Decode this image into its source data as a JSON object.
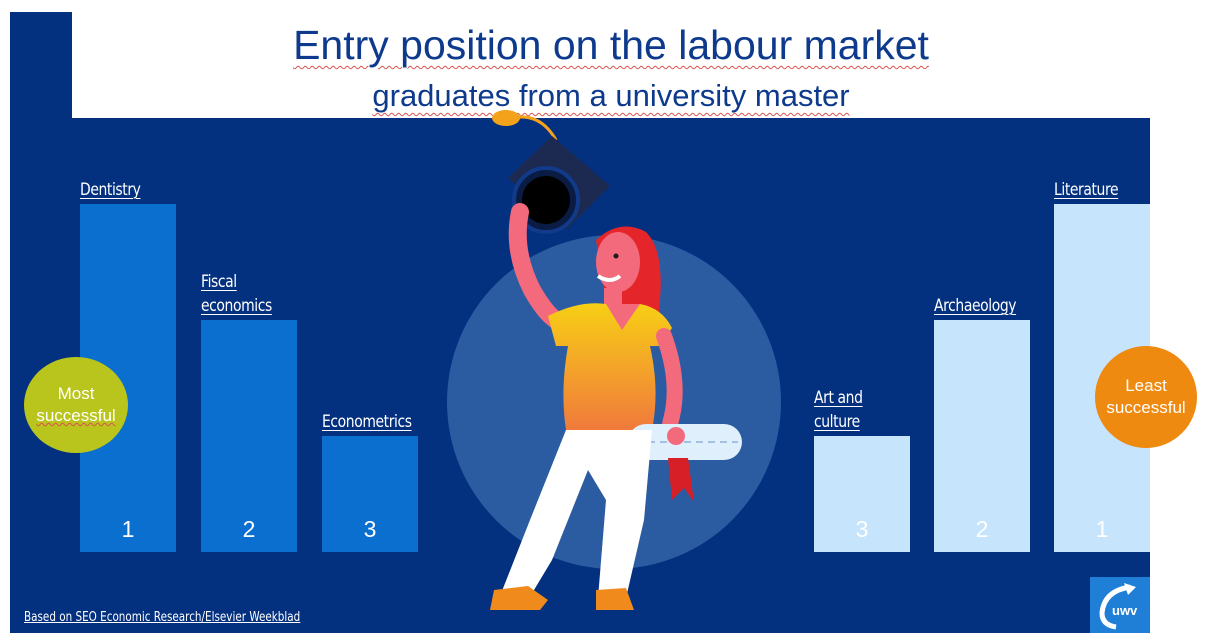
{
  "title": "Entry position on the labour market",
  "subtitle": "graduates from a university master",
  "source": "Based on SEO Economic Research/Elsevier Weekblad",
  "logo_text": "uwv",
  "colors": {
    "background": "#03307f",
    "most_bars": "#0a6fce",
    "least_bars": "#c6e4fb",
    "most_badge": "#b9c51c",
    "least_badge": "#ef8a10"
  },
  "chart_data": [
    {
      "type": "bar",
      "group": "Most successful",
      "categories": [
        "Dentistry",
        "Fiscal economics",
        "Econometrics"
      ],
      "ranks": [
        1,
        2,
        3
      ],
      "category_lines": [
        [
          "Dentistry"
        ],
        [
          "Fiscal",
          "economics"
        ],
        [
          "Econometrics"
        ]
      ],
      "values": [
        3,
        2,
        1
      ],
      "badge_lines": [
        "Most",
        "successful"
      ]
    },
    {
      "type": "bar",
      "group": "Least successful",
      "categories": [
        "Art and culture",
        "Archaeology",
        "Literature"
      ],
      "ranks": [
        3,
        2,
        1
      ],
      "category_lines": [
        [
          "Art and",
          "culture"
        ],
        [
          "Archaeology"
        ],
        [
          "Literature"
        ]
      ],
      "values": [
        1,
        2,
        3
      ],
      "badge_lines": [
        "Least",
        "successful"
      ]
    }
  ]
}
